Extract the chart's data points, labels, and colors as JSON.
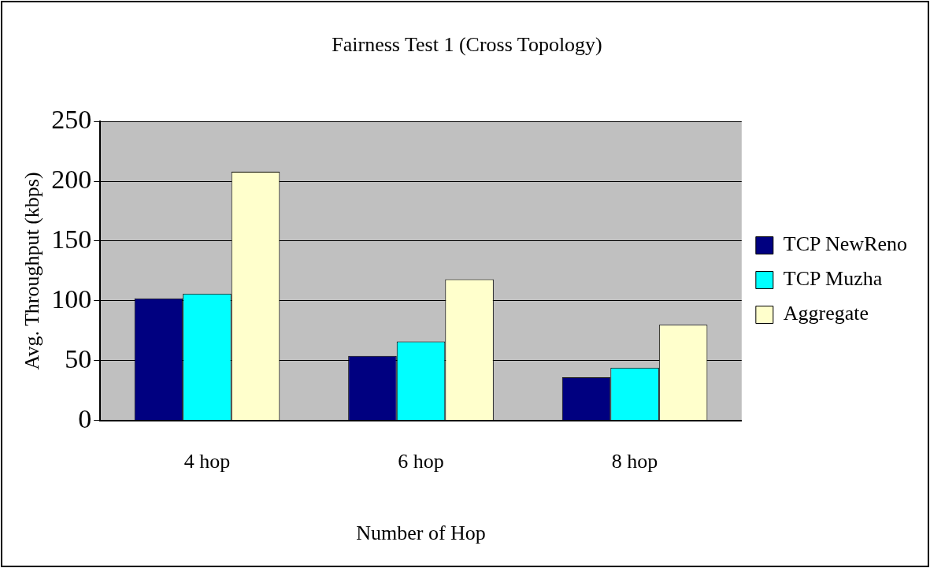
{
  "chart_data": {
    "type": "bar",
    "title": "Fairness Test 1 (Cross Topology)",
    "xlabel": "Number of Hop",
    "ylabel": "Avg. Throughput (kbps)",
    "categories": [
      "4 hop",
      "6 hop",
      "8 hop"
    ],
    "series": [
      {
        "name": "TCP NewReno",
        "color": "#000080",
        "values": [
          102,
          54,
          36
        ]
      },
      {
        "name": "TCP Muzha",
        "color": "#00ffff",
        "values": [
          106,
          66,
          44
        ]
      },
      {
        "name": "Aggregate",
        "color": "#ffffcc",
        "values": [
          208,
          118,
          80
        ]
      }
    ],
    "ylim": [
      0,
      250
    ],
    "yticks": [
      0,
      50,
      100,
      150,
      200,
      250
    ],
    "grid": "y",
    "legend": "right"
  }
}
